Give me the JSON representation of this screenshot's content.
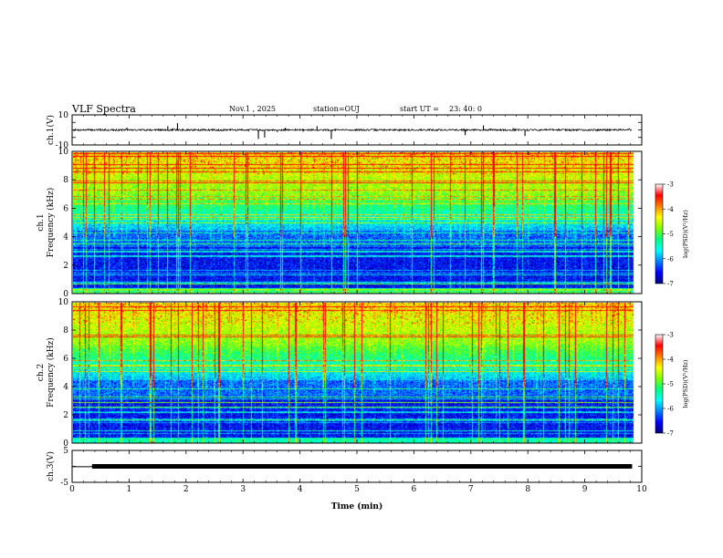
{
  "header": {
    "title": "VLF Spectra",
    "date": "Nov.1  , 2025",
    "station": "station=OUJ",
    "start_label": "start  UT  =",
    "start_time": "23: 40: 0"
  },
  "chart_data": [
    {
      "type": "line",
      "name": "ch.1 waveform",
      "ylabel": "ch.1(V)",
      "ylim": [
        -10,
        10
      ],
      "yticks": [
        "10",
        "-10"
      ],
      "baseline": 0,
      "noise_amplitude": 0.6,
      "spikes": [
        {
          "t": 1.68,
          "v": 2.5
        },
        {
          "t": 1.85,
          "v": 4.5
        },
        {
          "t": 3.27,
          "v": -6.0
        },
        {
          "t": 3.38,
          "v": -5.0
        },
        {
          "t": 4.3,
          "v": 2.5
        },
        {
          "t": 4.55,
          "v": -6.0
        },
        {
          "t": 6.9,
          "v": -3.5
        },
        {
          "t": 7.22,
          "v": 3.0
        },
        {
          "t": 7.95,
          "v": -4.0
        }
      ]
    },
    {
      "type": "heatmap",
      "name": "ch.1 spectrogram",
      "ylabel_line1": "ch.1",
      "ylabel_line2": "Frequency (kHz)",
      "ylim": [
        0,
        10
      ],
      "yticks": [
        "0",
        "2",
        "4",
        "6",
        "8",
        "10"
      ],
      "colorbar_label": "log(PSD)(V²/Hz)",
      "colorbar_range": [
        -7,
        -3
      ],
      "colorbar_ticks": [
        "-3",
        "-4",
        "-5",
        "-6",
        "-7"
      ],
      "seed": 11
    },
    {
      "type": "heatmap",
      "name": "ch.2 spectrogram",
      "ylabel_line1": "ch.2",
      "ylabel_line2": "Frequency (kHz)",
      "ylim": [
        0,
        10
      ],
      "yticks": [
        "0",
        "2",
        "4",
        "6",
        "8",
        "10"
      ],
      "colorbar_label": "log(PSD)(V²/Hz)",
      "colorbar_range": [
        -7,
        -3
      ],
      "colorbar_ticks": [
        "-3",
        "-4",
        "-5",
        "-6",
        "-7"
      ],
      "seed": 29
    },
    {
      "type": "line",
      "name": "ch.3 waveform",
      "ylabel": "ch.3(V)",
      "ylim": [
        -5,
        5
      ],
      "yticks": [
        "5",
        "-5"
      ],
      "x": [
        0,
        0.32,
        0.35,
        9.83
      ],
      "y": [
        -0.1,
        -0.1,
        0.0,
        0.0
      ]
    }
  ],
  "xaxis": {
    "label": "Time  (min)",
    "range": [
      0,
      10
    ],
    "ticks": [
      "0",
      "1",
      "2",
      "3",
      "4",
      "5",
      "6",
      "7",
      "8",
      "9",
      "10"
    ],
    "data_end": 9.83
  },
  "colors": {
    "colormap": [
      "#000080",
      "#0000ff",
      "#0080ff",
      "#00ffff",
      "#00ff80",
      "#80ff00",
      "#ffff00",
      "#ff8000",
      "#ff0000",
      "#ffffff"
    ]
  }
}
